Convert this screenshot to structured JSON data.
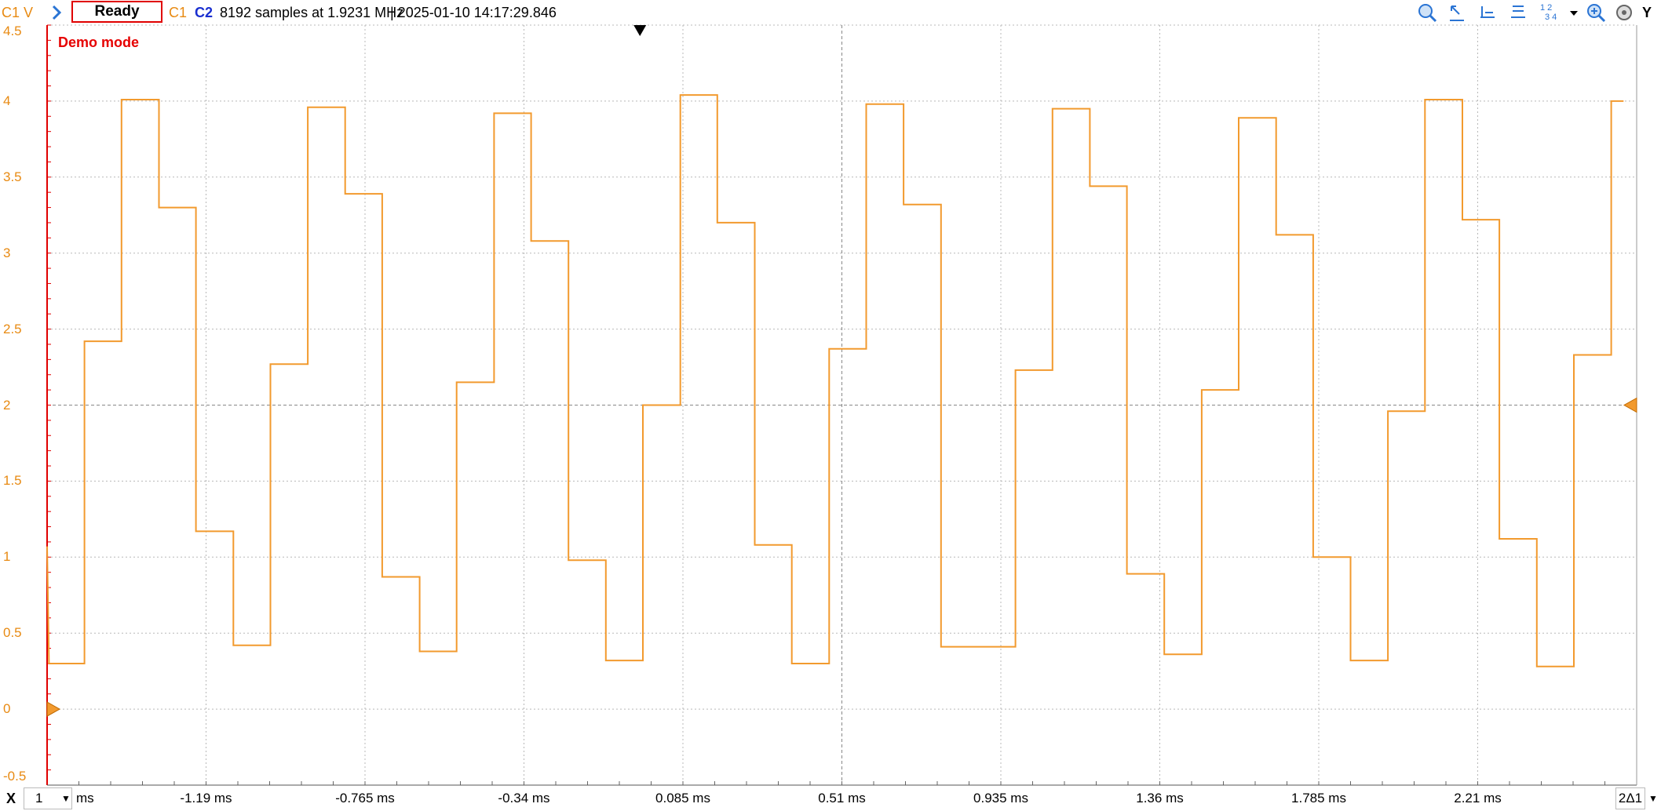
{
  "toolbar": {
    "channel_axis_label": "C1 V",
    "run_status": "Ready",
    "ch1_label": "C1",
    "ch2_label": "C2",
    "acquisition_info": "8192 samples at 1.9231 MHz",
    "timestamp": "| 2025-01-10 14:17:29.846",
    "y_button": "Y",
    "channel_grid_label_top": "1 2",
    "channel_grid_label_bottom": "3 4"
  },
  "plot": {
    "demo_label": "Demo mode",
    "colors": {
      "ch1": "#f29a2e",
      "axis": "#e00000",
      "grid": "#b8b8b8",
      "ylabel": "#e88a12"
    },
    "y_ticks": [
      "4.5",
      "4",
      "3.5",
      "3",
      "2.5",
      "2",
      "1.5",
      "1",
      "0.5",
      "0",
      "-0.5"
    ]
  },
  "bottom": {
    "x_button": "X",
    "scale_value": "1",
    "scale_unit": "ms",
    "x_ticks": [
      "-1.19 ms",
      "-0.765 ms",
      "-0.34 ms",
      "0.085 ms",
      "0.51 ms",
      "0.935 ms",
      "1.36 ms",
      "1.785 ms",
      "2.21 ms"
    ],
    "cursor_button": "2Δ1"
  },
  "chart_data": {
    "type": "line",
    "title": "",
    "xlabel": "",
    "ylabel": "C1 V",
    "ylim": [
      -0.5,
      4.5
    ],
    "xlim_ms": [
      -1.615,
      2.635
    ],
    "series": [
      {
        "name": "C1",
        "unit_x": "ms",
        "points": [
          [
            -1.615,
            1.07
          ],
          [
            -1.61,
            0.3
          ],
          [
            -1.515,
            0.3
          ],
          [
            -1.515,
            2.42
          ],
          [
            -1.416,
            2.42
          ],
          [
            -1.416,
            4.01
          ],
          [
            -1.316,
            4.01
          ],
          [
            -1.316,
            3.3
          ],
          [
            -1.217,
            3.3
          ],
          [
            -1.217,
            1.17
          ],
          [
            -1.117,
            1.17
          ],
          [
            -1.117,
            0.42
          ],
          [
            -1.018,
            0.42
          ],
          [
            -1.018,
            2.27
          ],
          [
            -0.918,
            2.27
          ],
          [
            -0.918,
            3.96
          ],
          [
            -0.818,
            3.96
          ],
          [
            -0.818,
            3.39
          ],
          [
            -0.719,
            3.39
          ],
          [
            -0.719,
            0.87
          ],
          [
            -0.619,
            0.87
          ],
          [
            -0.619,
            0.38
          ],
          [
            -0.52,
            0.38
          ],
          [
            -0.52,
            2.15
          ],
          [
            -0.42,
            2.15
          ],
          [
            -0.42,
            3.92
          ],
          [
            -0.321,
            3.92
          ],
          [
            -0.321,
            3.08
          ],
          [
            -0.221,
            3.08
          ],
          [
            -0.221,
            0.98
          ],
          [
            -0.121,
            0.98
          ],
          [
            -0.121,
            0.32
          ],
          [
            -0.022,
            0.32
          ],
          [
            -0.022,
            2.0
          ],
          [
            0.078,
            2.0
          ],
          [
            0.078,
            4.04
          ],
          [
            0.177,
            4.04
          ],
          [
            0.177,
            3.2
          ],
          [
            0.277,
            3.2
          ],
          [
            0.277,
            1.08
          ],
          [
            0.376,
            1.08
          ],
          [
            0.376,
            0.3
          ],
          [
            0.476,
            0.3
          ],
          [
            0.476,
            2.37
          ],
          [
            0.575,
            2.37
          ],
          [
            0.575,
            3.98
          ],
          [
            0.675,
            3.98
          ],
          [
            0.675,
            3.32
          ],
          [
            0.775,
            3.32
          ],
          [
            0.775,
            0.41
          ],
          [
            0.874,
            0.41
          ],
          [
            0.874,
            0.41
          ],
          [
            0.974,
            0.41
          ],
          [
            0.974,
            2.23
          ],
          [
            1.073,
            2.23
          ],
          [
            1.073,
            3.95
          ],
          [
            1.173,
            3.95
          ],
          [
            1.173,
            3.44
          ],
          [
            1.272,
            3.44
          ],
          [
            1.272,
            0.89
          ],
          [
            1.372,
            0.89
          ],
          [
            1.372,
            0.36
          ],
          [
            1.472,
            0.36
          ],
          [
            1.472,
            2.1
          ],
          [
            1.571,
            2.1
          ],
          [
            1.571,
            3.89
          ],
          [
            1.671,
            3.89
          ],
          [
            1.671,
            3.12
          ],
          [
            1.77,
            3.12
          ],
          [
            1.77,
            1.0
          ],
          [
            1.87,
            1.0
          ],
          [
            1.87,
            0.32
          ],
          [
            1.97,
            0.32
          ],
          [
            1.97,
            1.96
          ],
          [
            2.069,
            1.96
          ],
          [
            2.069,
            4.01
          ],
          [
            2.169,
            4.01
          ],
          [
            2.169,
            3.22
          ],
          [
            2.268,
            3.22
          ],
          [
            2.268,
            1.12
          ],
          [
            2.368,
            1.12
          ],
          [
            2.368,
            0.28
          ],
          [
            2.467,
            0.28
          ],
          [
            2.467,
            2.33
          ],
          [
            2.567,
            2.33
          ],
          [
            2.567,
            4.0
          ],
          [
            2.6,
            4.0
          ]
        ]
      }
    ]
  }
}
